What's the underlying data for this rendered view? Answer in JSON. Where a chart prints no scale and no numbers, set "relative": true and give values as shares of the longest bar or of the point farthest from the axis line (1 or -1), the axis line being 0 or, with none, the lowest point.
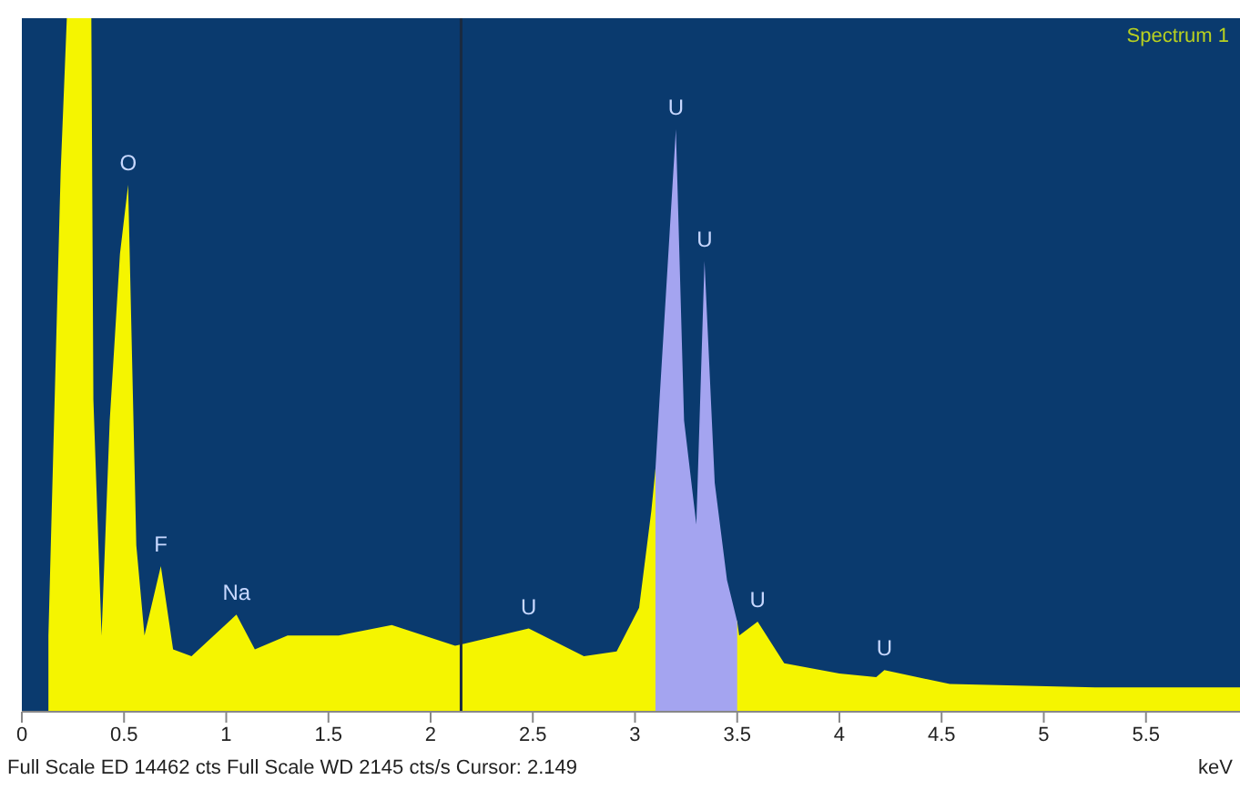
{
  "chart_data": {
    "type": "area",
    "relative": true,
    "xlabel": "keV",
    "xlim": [
      0,
      5.96
    ],
    "xticks": [
      0,
      0.5,
      1,
      1.5,
      2,
      2.5,
      3,
      3.5,
      4,
      4.5,
      5,
      5.5
    ],
    "series": [
      {
        "color": "#f5f500",
        "x": [
          0.13,
          0.19,
          0.22,
          0.25,
          0.34,
          0.35,
          0.39,
          0.43,
          0.48,
          0.52,
          0.56,
          0.6,
          0.68,
          0.74,
          0.83,
          1.05,
          1.14,
          1.3,
          1.55,
          1.81,
          2.12,
          2.48,
          2.75,
          2.91,
          3.02,
          3.08,
          3.1,
          3.5,
          3.51,
          3.6,
          3.73,
          4.0,
          4.18,
          4.22,
          4.54,
          5.25,
          5.96
        ],
        "values": [
          0.11,
          0.78,
          1,
          1,
          1,
          0.45,
          0.11,
          0.42,
          0.66,
          0.76,
          0.24,
          0.11,
          0.21,
          0.09,
          0.08,
          0.14,
          0.09,
          0.11,
          0.11,
          0.125,
          0.095,
          0.12,
          0.08,
          0.087,
          0.15,
          0.29,
          0.35,
          0.13,
          0.11,
          0.13,
          0.07,
          0.055,
          0.05,
          0.06,
          0.04,
          0.035,
          0.035
        ]
      },
      {
        "color": "#a4a4f0",
        "x": [
          3.1,
          3.12,
          3.2,
          3.24,
          3.3,
          3.34,
          3.39,
          3.45,
          3.5
        ],
        "values": [
          0.35,
          0.45,
          0.84,
          0.42,
          0.27,
          0.65,
          0.33,
          0.19,
          0.13
        ]
      }
    ],
    "ref_lines": [
      {
        "axis": "x",
        "value": 2.149,
        "color": "#1a2a40"
      }
    ],
    "annotations": [
      {
        "text": "O",
        "x": 0.52,
        "y": 0.76
      },
      {
        "text": "F",
        "x": 0.68,
        "y": 0.21
      },
      {
        "text": "Na",
        "x": 1.05,
        "y": 0.14
      },
      {
        "text": "U",
        "x": 2.48,
        "y": 0.12
      },
      {
        "text": "U",
        "x": 3.2,
        "y": 0.84
      },
      {
        "text": "U",
        "x": 3.34,
        "y": 0.65
      },
      {
        "text": "U",
        "x": 3.6,
        "y": 0.13
      },
      {
        "text": "U",
        "x": 4.22,
        "y": 0.06
      },
      "Spectrum 1",
      "Full Scale ED 14462 cts Full Scale WD 2145 cts/s Cursor: 2.149"
    ]
  }
}
